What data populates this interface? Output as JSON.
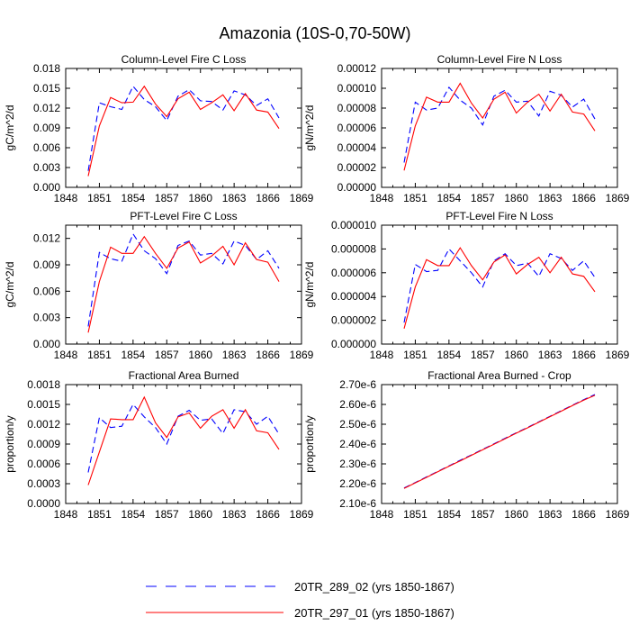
{
  "figure": {
    "title": "Amazonia (10S-0,70-50W)"
  },
  "colors": {
    "series_a": "#0000ff",
    "series_b": "#ff0000",
    "axis": "#000000"
  },
  "legend": {
    "entries": [
      {
        "label": "20TR_289_02 (yrs 1850-1867)",
        "color": "#0000ff",
        "style": "dashed"
      },
      {
        "label": "20TR_297_01 (yrs 1850-1867)",
        "color": "#ff0000",
        "style": "solid"
      }
    ]
  },
  "chart_data": [
    {
      "type": "line",
      "title": "Column-Level Fire C Loss",
      "ylabel": "gC/m^2/d",
      "xlim": [
        1848,
        1869
      ],
      "xticks": [
        1848,
        1851,
        1854,
        1857,
        1860,
        1863,
        1866,
        1869
      ],
      "ylim": [
        0,
        0.018
      ],
      "yticks": [
        0,
        0.003,
        0.006,
        0.009,
        0.012,
        0.015,
        0.018
      ],
      "ytick_labels": [
        "0.000",
        "0.003",
        "0.006",
        "0.009",
        "0.012",
        "0.015",
        "0.018"
      ],
      "x": [
        1850,
        1851,
        1852,
        1853,
        1854,
        1855,
        1856,
        1857,
        1858,
        1859,
        1860,
        1861,
        1862,
        1863,
        1864,
        1865,
        1866,
        1867
      ],
      "series": [
        {
          "name": "20TR_289_02 (yrs 1850-1867)",
          "values": [
            0.0025,
            0.0128,
            0.0122,
            0.0118,
            0.0153,
            0.0133,
            0.0122,
            0.0101,
            0.0138,
            0.0148,
            0.0131,
            0.013,
            0.0117,
            0.0146,
            0.014,
            0.0124,
            0.0134,
            0.0105
          ]
        },
        {
          "name": "20TR_297_01 (yrs 1850-1867)",
          "values": [
            0.0017,
            0.0093,
            0.0136,
            0.0128,
            0.0129,
            0.0153,
            0.0126,
            0.0107,
            0.0134,
            0.0144,
            0.0118,
            0.0128,
            0.014,
            0.0116,
            0.0142,
            0.0117,
            0.0114,
            0.0089
          ]
        }
      ]
    },
    {
      "type": "line",
      "title": "Column-Level Fire N Loss",
      "ylabel": "gN/m^2/d",
      "xlim": [
        1848,
        1869
      ],
      "xticks": [
        1848,
        1851,
        1854,
        1857,
        1860,
        1863,
        1866,
        1869
      ],
      "ylim": [
        0,
        0.00012
      ],
      "yticks": [
        0,
        2e-05,
        4e-05,
        6e-05,
        8e-05,
        0.0001,
        0.00012
      ],
      "ytick_labels": [
        "0.00000",
        "0.00002",
        "0.00004",
        "0.00006",
        "0.00008",
        "0.00010",
        "0.00012"
      ],
      "x": [
        1850,
        1851,
        1852,
        1853,
        1854,
        1855,
        1856,
        1857,
        1858,
        1859,
        1860,
        1861,
        1862,
        1863,
        1864,
        1865,
        1866,
        1867
      ],
      "series": [
        {
          "name": "20TR_289_02 (yrs 1850-1867)",
          "values": [
            2.5e-05,
            8.6e-05,
            7.8e-05,
            8e-05,
            0.000101,
            8.8e-05,
            8e-05,
            6.3e-05,
            9.2e-05,
            9.8e-05,
            8.6e-05,
            8.7e-05,
            7.2e-05,
            9.7e-05,
            9.3e-05,
            8.1e-05,
            8.9e-05,
            6.9e-05
          ]
        },
        {
          "name": "20TR_297_01 (yrs 1850-1867)",
          "values": [
            1.7e-05,
            6.2e-05,
            9.1e-05,
            8.6e-05,
            8.6e-05,
            0.000105,
            8.5e-05,
            7e-05,
            8.9e-05,
            9.6e-05,
            7.5e-05,
            8.6e-05,
            9.4e-05,
            7.7e-05,
            9.4e-05,
            7.6e-05,
            7.4e-05,
            5.7e-05
          ]
        }
      ]
    },
    {
      "type": "line",
      "title": "PFT-Level Fire C Loss",
      "ylabel": "gC/m^2/d",
      "xlim": [
        1848,
        1869
      ],
      "xticks": [
        1848,
        1851,
        1854,
        1857,
        1860,
        1863,
        1866,
        1869
      ],
      "ylim": [
        0,
        0.0135
      ],
      "yticks": [
        0,
        0.003,
        0.006,
        0.009,
        0.012
      ],
      "ytick_labels": [
        "0.000",
        "0.003",
        "0.006",
        "0.009",
        "0.012"
      ],
      "x": [
        1850,
        1851,
        1852,
        1853,
        1854,
        1855,
        1856,
        1857,
        1858,
        1859,
        1860,
        1861,
        1862,
        1863,
        1864,
        1865,
        1866,
        1867
      ],
      "series": [
        {
          "name": "20TR_289_02 (yrs 1850-1867)",
          "values": [
            0.002,
            0.0104,
            0.0097,
            0.0094,
            0.0125,
            0.0106,
            0.0097,
            0.008,
            0.0112,
            0.0117,
            0.0101,
            0.0103,
            0.0091,
            0.0117,
            0.0112,
            0.0096,
            0.0106,
            0.0086
          ]
        },
        {
          "name": "20TR_297_01 (yrs 1850-1867)",
          "values": [
            0.0013,
            0.0071,
            0.011,
            0.0103,
            0.0103,
            0.0122,
            0.0103,
            0.0086,
            0.0109,
            0.0116,
            0.0092,
            0.01,
            0.0111,
            0.009,
            0.0115,
            0.0096,
            0.0093,
            0.0071
          ]
        }
      ]
    },
    {
      "type": "line",
      "title": "PFT-Level Fire N Loss",
      "ylabel": "gN/m^2/d",
      "xlim": [
        1848,
        1869
      ],
      "xticks": [
        1848,
        1851,
        1854,
        1857,
        1860,
        1863,
        1866,
        1869
      ],
      "ylim": [
        0,
        1e-05
      ],
      "yticks": [
        0,
        2e-06,
        4e-06,
        6e-06,
        8e-06,
        1e-05
      ],
      "ytick_labels": [
        "0.000000",
        "0.000002",
        "0.000004",
        "0.000006",
        "0.000008",
        "0.000010"
      ],
      "x": [
        1850,
        1851,
        1852,
        1853,
        1854,
        1855,
        1856,
        1857,
        1858,
        1859,
        1860,
        1861,
        1862,
        1863,
        1864,
        1865,
        1866,
        1867
      ],
      "series": [
        {
          "name": "20TR_289_02 (yrs 1850-1867)",
          "values": [
            1.8e-06,
            6.7e-06,
            6.1e-06,
            6.2e-06,
            8e-06,
            7e-06,
            6e-06,
            4.8e-06,
            7e-06,
            7.6e-06,
            6.6e-06,
            6.8e-06,
            5.7e-06,
            7.6e-06,
            7.2e-06,
            6.2e-06,
            7e-06,
            5.6e-06
          ]
        },
        {
          "name": "20TR_297_01 (yrs 1850-1867)",
          "values": [
            1.3e-06,
            4.8e-06,
            7.1e-06,
            6.6e-06,
            6.6e-06,
            8.1e-06,
            6.6e-06,
            5.4e-06,
            6.9e-06,
            7.5e-06,
            5.9e-06,
            6.7e-06,
            7.3e-06,
            6e-06,
            7.3e-06,
            5.9e-06,
            5.7e-06,
            4.4e-06
          ]
        }
      ]
    },
    {
      "type": "line",
      "title": "Fractional Area Burned",
      "ylabel": "proportion/y",
      "xlim": [
        1848,
        1869
      ],
      "xticks": [
        1848,
        1851,
        1854,
        1857,
        1860,
        1863,
        1866,
        1869
      ],
      "ylim": [
        0,
        0.0018
      ],
      "yticks": [
        0,
        0.0003,
        0.0006,
        0.0009,
        0.0012,
        0.0015,
        0.0018
      ],
      "ytick_labels": [
        "0.0000",
        "0.0003",
        "0.0006",
        "0.0009",
        "0.0012",
        "0.0015",
        "0.0018"
      ],
      "x": [
        1850,
        1851,
        1852,
        1853,
        1854,
        1855,
        1856,
        1857,
        1858,
        1859,
        1860,
        1861,
        1862,
        1863,
        1864,
        1865,
        1866,
        1867
      ],
      "series": [
        {
          "name": "20TR_289_02 (yrs 1850-1867)",
          "values": [
            0.00047,
            0.0013,
            0.00115,
            0.00117,
            0.0015,
            0.00131,
            0.00115,
            0.0009,
            0.00132,
            0.00141,
            0.00126,
            0.00128,
            0.00106,
            0.00142,
            0.00139,
            0.0012,
            0.00132,
            0.00105
          ]
        },
        {
          "name": "20TR_297_01 (yrs 1850-1867)",
          "values": [
            0.00028,
            0.00078,
            0.00128,
            0.00127,
            0.00127,
            0.00161,
            0.00122,
            0.001,
            0.00131,
            0.00137,
            0.00114,
            0.00132,
            0.00142,
            0.00114,
            0.00142,
            0.0011,
            0.00107,
            0.00082
          ]
        }
      ]
    },
    {
      "type": "line",
      "title": "Fractional Area Burned - Crop",
      "ylabel": "proportion/y",
      "xlim": [
        1848,
        1869
      ],
      "xticks": [
        1848,
        1851,
        1854,
        1857,
        1860,
        1863,
        1866,
        1869
      ],
      "ylim": [
        2.1e-06,
        2.7e-06
      ],
      "yticks": [
        2.1e-06,
        2.2e-06,
        2.3e-06,
        2.4e-06,
        2.5e-06,
        2.6e-06,
        2.7e-06
      ],
      "ytick_labels": [
        "2.10e-6",
        "2.20e-6",
        "2.30e-6",
        "2.40e-6",
        "2.50e-6",
        "2.60e-6",
        "2.70e-6"
      ],
      "x": [
        1850,
        1851,
        1852,
        1853,
        1854,
        1855,
        1856,
        1857,
        1858,
        1859,
        1860,
        1861,
        1862,
        1863,
        1864,
        1865,
        1866,
        1867
      ],
      "series": [
        {
          "name": "20TR_289_02 (yrs 1850-1867)",
          "values": [
            2.178e-06,
            2.206e-06,
            2.234e-06,
            2.262e-06,
            2.29e-06,
            2.318e-06,
            2.345e-06,
            2.373e-06,
            2.401e-06,
            2.429e-06,
            2.457e-06,
            2.484e-06,
            2.512e-06,
            2.54e-06,
            2.568e-06,
            2.596e-06,
            2.624e-06,
            2.65e-06
          ]
        },
        {
          "name": "20TR_297_01 (yrs 1850-1867)",
          "values": [
            2.176e-06,
            2.204e-06,
            2.232e-06,
            2.26e-06,
            2.288e-06,
            2.315e-06,
            2.343e-06,
            2.371e-06,
            2.399e-06,
            2.427e-06,
            2.455e-06,
            2.482e-06,
            2.51e-06,
            2.538e-06,
            2.566e-06,
            2.594e-06,
            2.622e-06,
            2.646e-06
          ]
        }
      ]
    }
  ]
}
